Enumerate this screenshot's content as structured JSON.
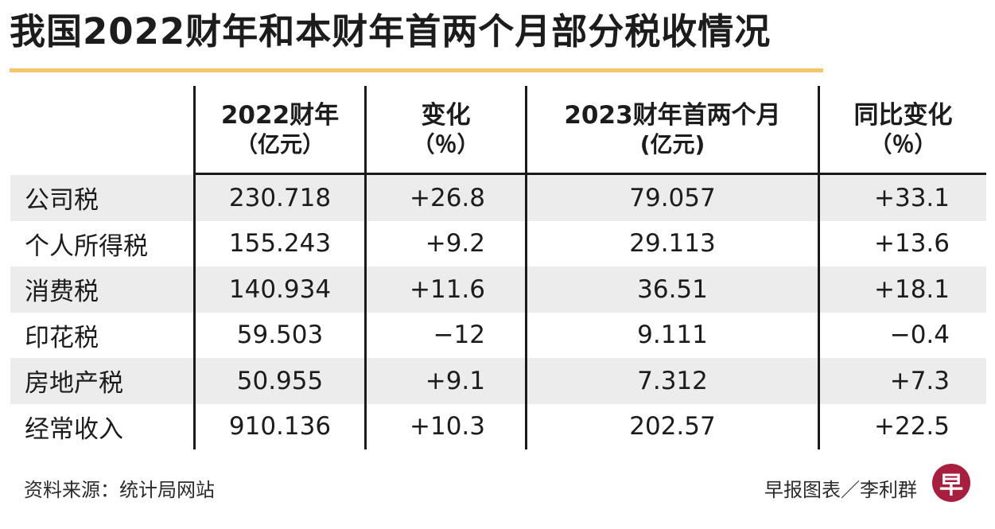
{
  "title": "我国2022财年和本财年首两个月部分税收情况",
  "chart_data": {
    "type": "table",
    "title": "我国2022财年和本财年首两个月部分税收情况",
    "header": [
      [
        "",
        ""
      ],
      [
        "2022财年",
        "（亿元）"
      ],
      [
        "变化",
        "（％）"
      ],
      [
        "2023财年首两个月",
        "(亿元)"
      ],
      [
        "同比变化",
        "（％）"
      ]
    ],
    "rows": [
      [
        "公司税",
        "230.718",
        "+26.8",
        "79.057",
        "+33.1"
      ],
      [
        "个人所得税",
        "155.243",
        "+9.2",
        "29.113",
        "+13.6"
      ],
      [
        "消费税",
        "140.934",
        "+11.6",
        "36.51",
        "+18.1"
      ],
      [
        "印花税",
        "59.503",
        "−12",
        "9.111",
        "−0.4"
      ],
      [
        "房地产税",
        "50.955",
        "+9.1",
        "7.312",
        "+7.3"
      ],
      [
        "经常收入",
        "910.136",
        "+10.3",
        "202.57",
        "+22.5"
      ]
    ],
    "layout_hints": {
      "striped_rows": "odd rows shaded",
      "value_alignment": "amount columns centered, percent columns right-aligned"
    }
  },
  "footer": {
    "source": "资料来源：统计局网站",
    "credit": "早报图表／李利群",
    "logo_glyph": "早"
  },
  "colors": {
    "accent_underline": "#f6c46a",
    "row_stripe": "#ececec",
    "logo_red": "#a81e3e",
    "line": "#1a1a1a"
  }
}
